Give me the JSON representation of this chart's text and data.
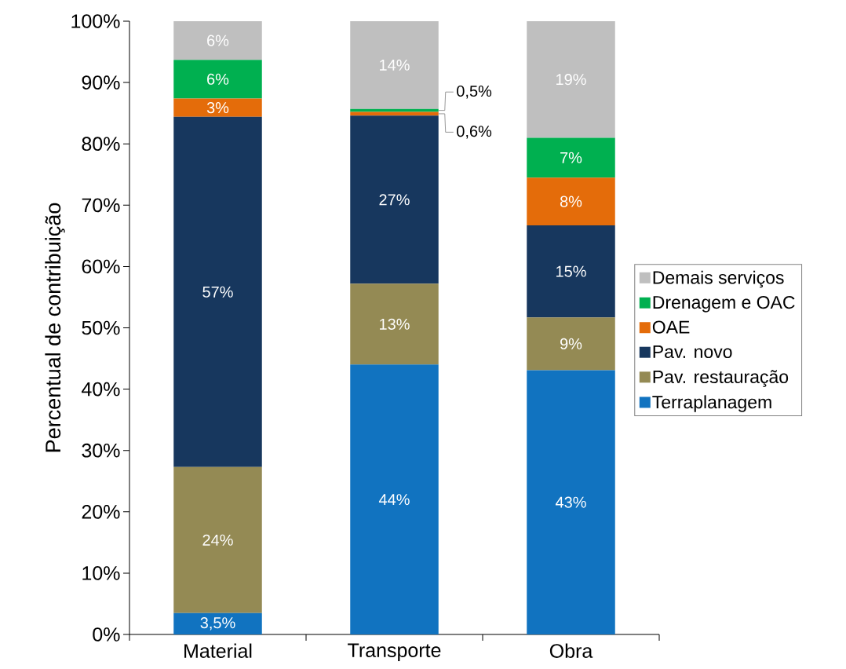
{
  "chart_data": {
    "type": "bar",
    "stacked": true,
    "ylabel": "Percentual de contribuição",
    "categories": [
      "Material",
      "Transporte",
      "Obra"
    ],
    "series": [
      {
        "name": "Terraplanagem",
        "color": "#1173c0",
        "values": [
          3.5,
          44.0,
          43.1
        ],
        "value_labels": [
          "3,5%",
          "44%",
          "43%"
        ]
      },
      {
        "name": "Pav. restauração",
        "color": "#948a54",
        "values": [
          23.8,
          13.2,
          8.6
        ],
        "value_labels": [
          "24%",
          "13%",
          "9%"
        ]
      },
      {
        "name": "Pav. novo",
        "color": "#17375e",
        "values": [
          57.1,
          27.4,
          15.0
        ],
        "value_labels": [
          "57%",
          "27%",
          "15%"
        ]
      },
      {
        "name": "OAE",
        "color": "#e46c0a",
        "values": [
          3.0,
          0.6,
          7.8
        ],
        "value_labels": [
          "3%",
          "0,6%",
          "8%"
        ]
      },
      {
        "name": "Drenagem e OAC",
        "color": "#00b050",
        "values": [
          6.3,
          0.5,
          6.5
        ],
        "value_labels": [
          "6%",
          "0,5%",
          "7%"
        ]
      },
      {
        "name": "Demais serviços",
        "color": "#bfbfbf",
        "values": [
          6.3,
          14.3,
          19.0
        ],
        "value_labels": [
          "6%",
          "14%",
          "19%"
        ]
      }
    ],
    "ylim": [
      0,
      100
    ],
    "yticks": [
      {
        "value": 0,
        "label": "0%"
      },
      {
        "value": 10,
        "label": "10%"
      },
      {
        "value": 20,
        "label": "20%"
      },
      {
        "value": 30,
        "label": "30%"
      },
      {
        "value": 40,
        "label": "40%"
      },
      {
        "value": 50,
        "label": "50%"
      },
      {
        "value": 60,
        "label": "60%"
      },
      {
        "value": 70,
        "label": "70%"
      },
      {
        "value": 80,
        "label": "80%"
      },
      {
        "value": 90,
        "label": "90%"
      },
      {
        "value": 100,
        "label": "100%"
      }
    ],
    "legend": "right",
    "grid": false
  }
}
